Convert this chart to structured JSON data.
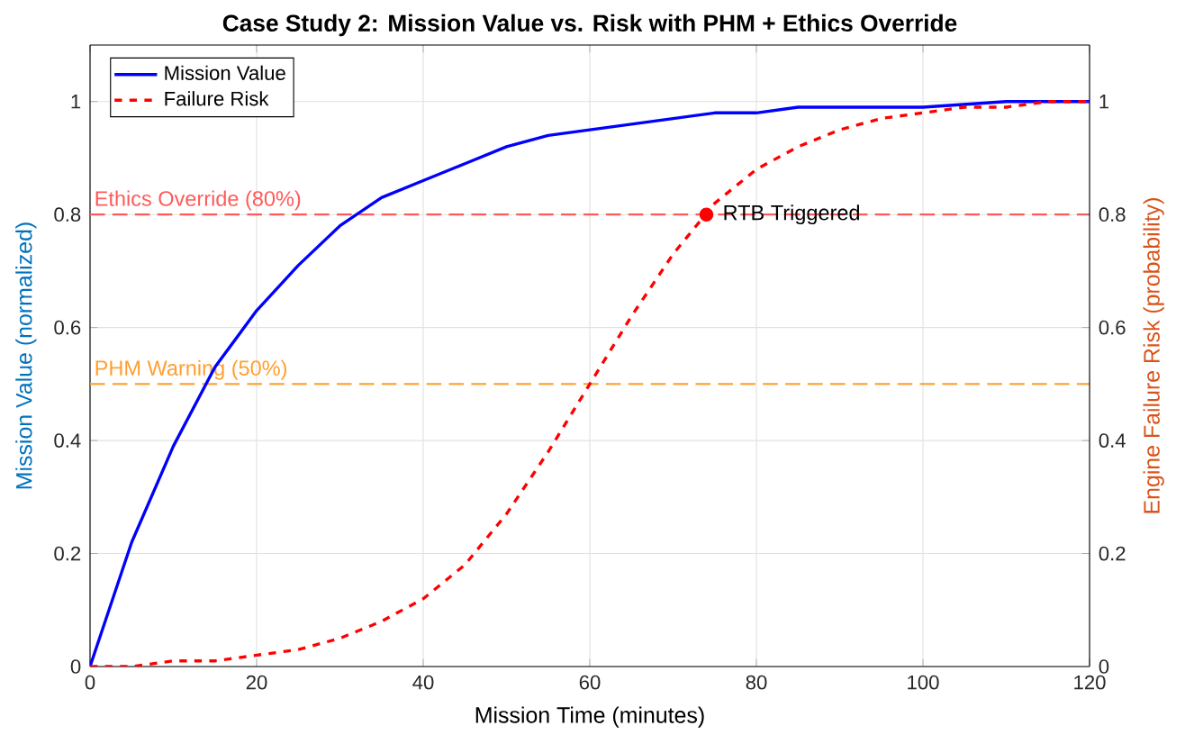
{
  "chart_data": {
    "type": "line",
    "title": "Case Study 2: Mission Value vs. Risk with PHM + Ethics Override",
    "xlabel": "Mission Time (minutes)",
    "ylabel": "Mission Value (normalized)",
    "y2label": "Engine Failure Risk (probability)",
    "xlim": [
      0,
      120
    ],
    "xticks": [
      0,
      20,
      40,
      60,
      80,
      100,
      120
    ],
    "ylim": [
      0,
      1.1
    ],
    "yticks": [
      0,
      0.2,
      0.4,
      0.6,
      0.8,
      1
    ],
    "y2lim": [
      0,
      1.1
    ],
    "y2ticks": [
      0,
      0.2,
      0.4,
      0.6,
      0.8,
      1
    ],
    "grid": true,
    "legend": "top left",
    "series": [
      {
        "name": "Mission Value",
        "color": "#0000ff",
        "line_style": "solid",
        "axis": "y",
        "x": [
          0,
          5,
          10,
          15,
          20,
          25,
          30,
          35,
          40,
          45,
          50,
          55,
          60,
          65,
          70,
          75,
          80,
          85,
          90,
          95,
          100,
          110,
          120
        ],
        "values": [
          0,
          0.22,
          0.39,
          0.53,
          0.63,
          0.71,
          0.78,
          0.83,
          0.86,
          0.89,
          0.92,
          0.94,
          0.95,
          0.96,
          0.97,
          0.98,
          0.98,
          0.99,
          0.99,
          0.99,
          0.99,
          1.0,
          1.0
        ]
      },
      {
        "name": "Failure Risk",
        "color": "#ff0000",
        "line_style": "dashed",
        "axis": "y2",
        "x": [
          0,
          5,
          10,
          15,
          20,
          25,
          30,
          35,
          40,
          45,
          50,
          55,
          60,
          65,
          70,
          75,
          80,
          85,
          90,
          95,
          100,
          105,
          110,
          115,
          120
        ],
        "values": [
          0,
          0,
          0.01,
          0.01,
          0.02,
          0.03,
          0.05,
          0.08,
          0.12,
          0.18,
          0.27,
          0.38,
          0.5,
          0.62,
          0.73,
          0.82,
          0.88,
          0.92,
          0.95,
          0.97,
          0.98,
          0.99,
          0.99,
          1.0,
          1.0
        ]
      },
      {
        "type": "scatter",
        "color": "#ff0000",
        "axis": "y2",
        "x": [
          74
        ],
        "values": [
          0.8
        ]
      }
    ],
    "ref_lines": [
      {
        "axis": "y",
        "value": 0.8,
        "label": "Ethics Override (80%)",
        "color": "#ff5a5a",
        "line_style": "dashed"
      },
      {
        "axis": "y",
        "value": 0.5,
        "label": "PHM Warning (50%)",
        "color": "#ff9f30",
        "line_style": "dashed"
      }
    ],
    "annotations": [
      {
        "text": "RTB Triggered",
        "x": 74,
        "y": 0.8
      }
    ]
  }
}
